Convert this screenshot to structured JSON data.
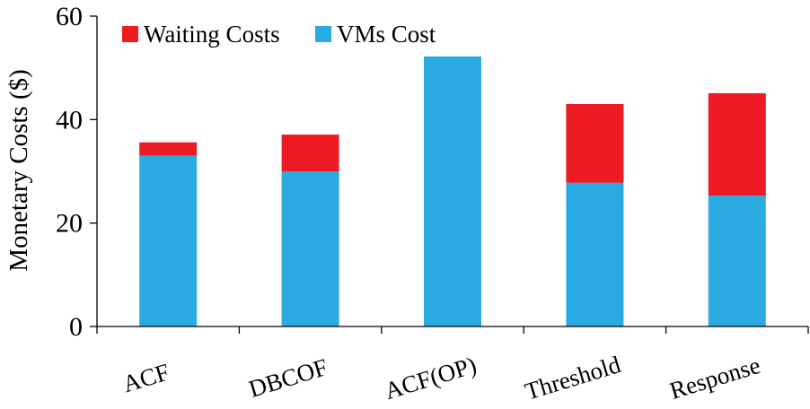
{
  "chart_data": {
    "type": "bar",
    "stacked": true,
    "title": "",
    "xlabel": "",
    "ylabel": "Monetary Costs ($)",
    "ylim": [
      0,
      60
    ],
    "yticks": [
      0,
      20,
      40,
      60
    ],
    "grid": false,
    "legend_position": "top-left",
    "categories": [
      "ACF",
      "DBCOF",
      "ACF(OP)",
      "Threshold",
      "Response"
    ],
    "series": [
      {
        "name": "VMs Cost",
        "color": "#29ABE2",
        "values": [
          33,
          30,
          52.2,
          27.8,
          25.3
        ]
      },
      {
        "name": "Waiting Costs",
        "color": "#ED1C24",
        "values": [
          2.6,
          7.1,
          0,
          15.2,
          19.8
        ]
      }
    ],
    "legend_order": [
      "Waiting Costs",
      "VMs Cost"
    ]
  }
}
